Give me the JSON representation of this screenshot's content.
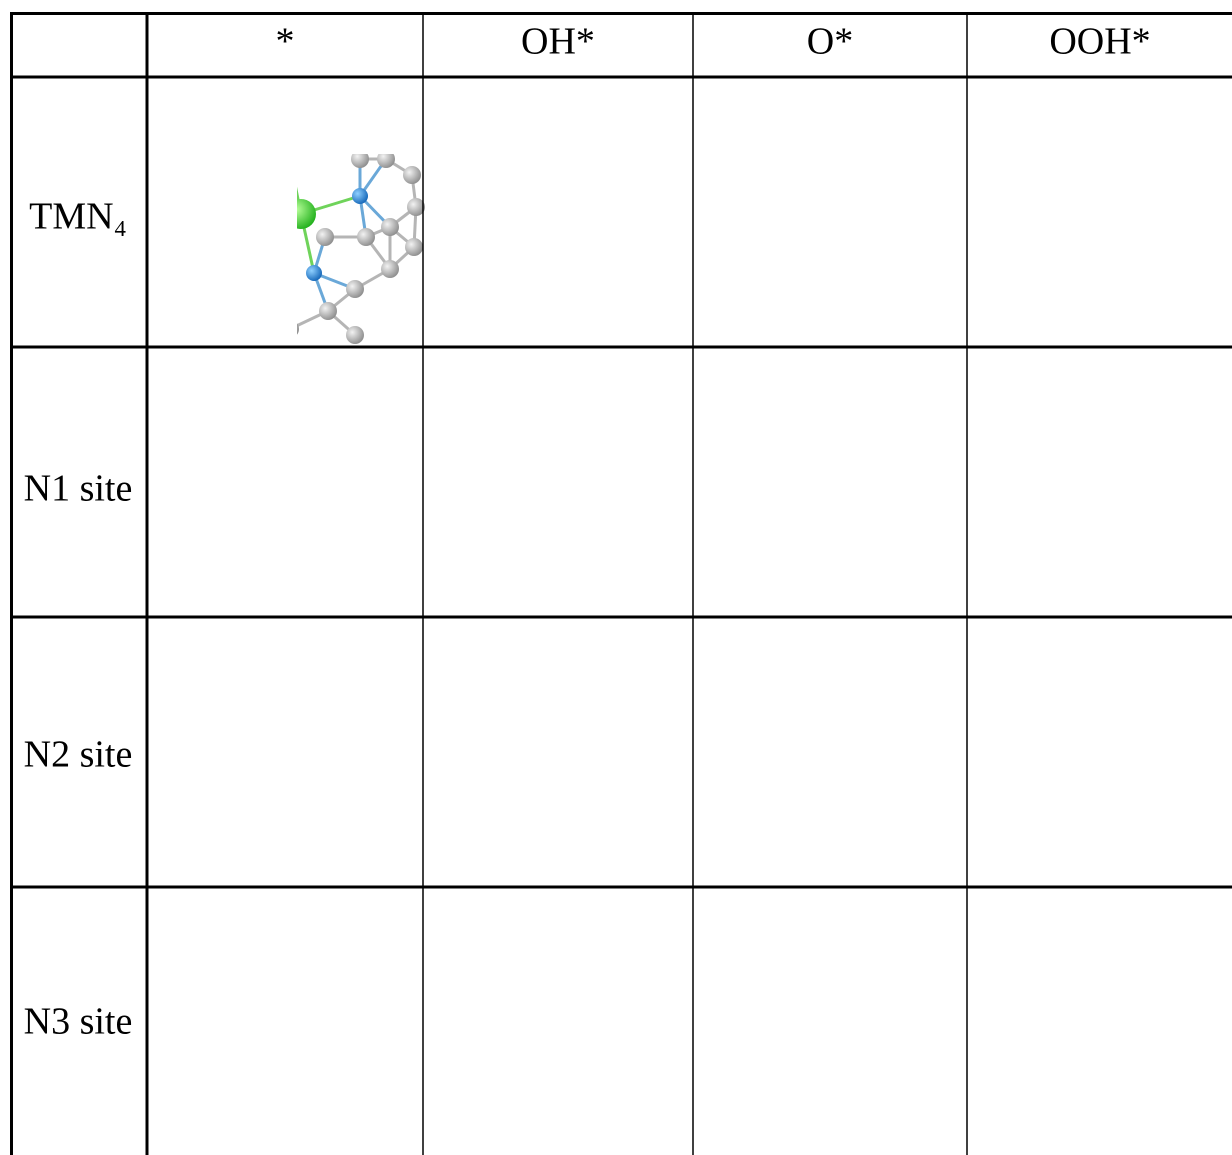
{
  "table": {
    "header": [
      "*",
      "OH*",
      "O*",
      "OOH*"
    ],
    "rows": [
      "TMN₄",
      "N1 site",
      "N2 site",
      "N3 site"
    ]
  }
}
